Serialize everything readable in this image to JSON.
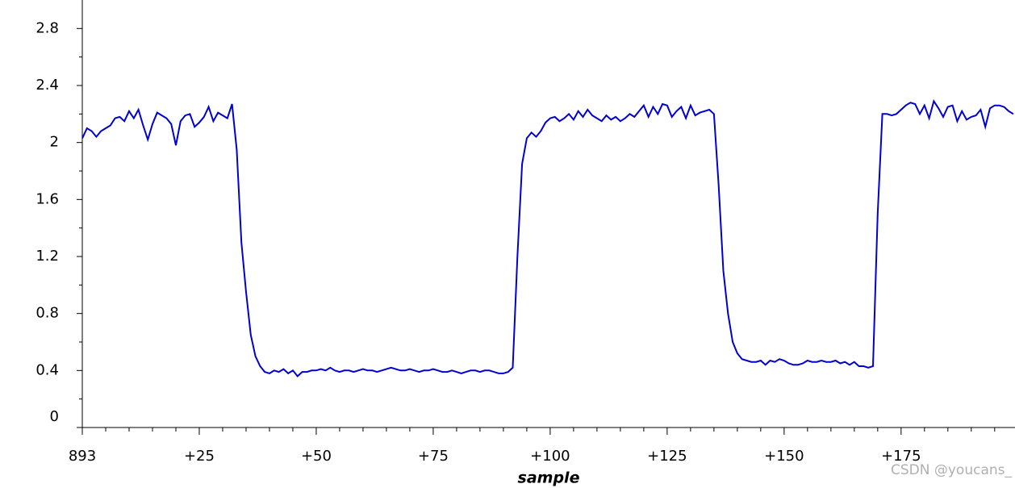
{
  "chart_data": {
    "type": "line",
    "x_label": "sample",
    "watermark": "CSDN @youcans_",
    "x": [
      0,
      1,
      2,
      3,
      4,
      5,
      6,
      7,
      8,
      9,
      10,
      11,
      12,
      13,
      14,
      15,
      16,
      17,
      18,
      19,
      20,
      21,
      22,
      23,
      24,
      25,
      26,
      27,
      28,
      29,
      30,
      31,
      32,
      33,
      34,
      35,
      36,
      37,
      38,
      39,
      40,
      41,
      42,
      43,
      44,
      45,
      46,
      47,
      48,
      49,
      50,
      51,
      52,
      53,
      54,
      55,
      56,
      57,
      58,
      59,
      60,
      61,
      62,
      63,
      64,
      65,
      66,
      67,
      68,
      69,
      70,
      71,
      72,
      73,
      74,
      75,
      76,
      77,
      78,
      79,
      80,
      81,
      82,
      83,
      84,
      85,
      86,
      87,
      88,
      89,
      90,
      91,
      92,
      93,
      94,
      95,
      96,
      97,
      98,
      99,
      100,
      101,
      102,
      103,
      104,
      105,
      106,
      107,
      108,
      109,
      110,
      111,
      112,
      113,
      114,
      115,
      116,
      117,
      118,
      119,
      120,
      121,
      122,
      123,
      124,
      125,
      126,
      127,
      128,
      129,
      130,
      131,
      132,
      133,
      134,
      135,
      136,
      137,
      138,
      139,
      140,
      141,
      142,
      143,
      144,
      145,
      146,
      147,
      148,
      149,
      150,
      151,
      152,
      153,
      154,
      155,
      156,
      157,
      158,
      159,
      160,
      161,
      162,
      163,
      164,
      165,
      166,
      167,
      168,
      169,
      170,
      171,
      172,
      173,
      174,
      175,
      176,
      177,
      178,
      179,
      180,
      181,
      182,
      183,
      184,
      185,
      186,
      187,
      188,
      189,
      190,
      191,
      192,
      193,
      194,
      195,
      196,
      197,
      198,
      199
    ],
    "series": [
      {
        "color": "#0000d0",
        "values": [
          2.03,
          2.1,
          2.08,
          2.04,
          2.08,
          2.1,
          2.12,
          2.17,
          2.18,
          2.15,
          2.22,
          2.17,
          2.23,
          2.12,
          2.02,
          2.13,
          2.21,
          2.19,
          2.17,
          2.13,
          1.98,
          2.15,
          2.19,
          2.2,
          2.11,
          2.14,
          2.18,
          2.25,
          2.15,
          2.21,
          2.19,
          2.17,
          2.27,
          1.95,
          1.3,
          0.95,
          0.65,
          0.5,
          0.43,
          0.39,
          0.38,
          0.4,
          0.39,
          0.41,
          0.38,
          0.4,
          0.36,
          0.39,
          0.39,
          0.4,
          0.4,
          0.41,
          0.4,
          0.42,
          0.4,
          0.39,
          0.4,
          0.4,
          0.39,
          0.4,
          0.41,
          0.4,
          0.4,
          0.39,
          0.4,
          0.41,
          0.42,
          0.41,
          0.4,
          0.4,
          0.41,
          0.4,
          0.39,
          0.4,
          0.4,
          0.41,
          0.4,
          0.39,
          0.39,
          0.4,
          0.39,
          0.38,
          0.39,
          0.4,
          0.4,
          0.39,
          0.4,
          0.4,
          0.39,
          0.38,
          0.38,
          0.39,
          0.42,
          1.2,
          1.85,
          2.03,
          2.07,
          2.04,
          2.08,
          2.14,
          2.17,
          2.18,
          2.15,
          2.17,
          2.2,
          2.16,
          2.22,
          2.18,
          2.23,
          2.19,
          2.17,
          2.15,
          2.19,
          2.16,
          2.18,
          2.15,
          2.17,
          2.2,
          2.18,
          2.22,
          2.26,
          2.18,
          2.25,
          2.2,
          2.27,
          2.26,
          2.18,
          2.22,
          2.25,
          2.17,
          2.26,
          2.19,
          2.21,
          2.22,
          2.23,
          2.2,
          1.7,
          1.1,
          0.8,
          0.6,
          0.52,
          0.48,
          0.47,
          0.46,
          0.46,
          0.47,
          0.44,
          0.47,
          0.46,
          0.48,
          0.47,
          0.45,
          0.44,
          0.44,
          0.45,
          0.47,
          0.46,
          0.46,
          0.47,
          0.46,
          0.46,
          0.47,
          0.45,
          0.46,
          0.44,
          0.46,
          0.43,
          0.43,
          0.42,
          0.43,
          1.5,
          2.2,
          2.2,
          2.19,
          2.2,
          2.23,
          2.26,
          2.28,
          2.27,
          2.2,
          2.26,
          2.17,
          2.29,
          2.24,
          2.18,
          2.25,
          2.26,
          2.15,
          2.22,
          2.16,
          2.18,
          2.19,
          2.23,
          2.11,
          2.24,
          2.26,
          2.26,
          2.25,
          2.22,
          2.2
        ]
      }
    ],
    "xlim": [
      0,
      199
    ],
    "xticks": [
      {
        "value": 0,
        "label": "893"
      },
      {
        "value": 25,
        "label": "+25"
      },
      {
        "value": 50,
        "label": "+50"
      },
      {
        "value": 75,
        "label": "+75"
      },
      {
        "value": 100,
        "label": "+100"
      },
      {
        "value": 125,
        "label": "+125"
      },
      {
        "value": 150,
        "label": "+150"
      },
      {
        "value": 175,
        "label": "+175"
      }
    ],
    "ylim": [
      0,
      3
    ],
    "yticks": [
      0,
      0.4,
      0.8,
      1.2,
      1.6,
      2,
      2.4,
      2.8
    ]
  }
}
